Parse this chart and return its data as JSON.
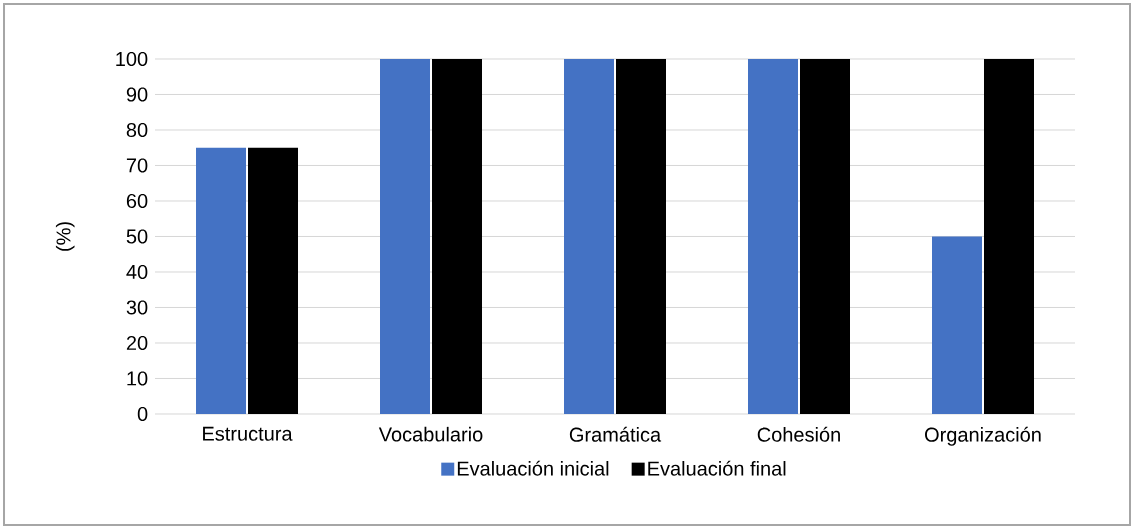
{
  "chart_data": {
    "type": "bar",
    "ylabel": "(%)",
    "categories": [
      "Estructura",
      "Vocabulario",
      "Gramática",
      "Cohesión",
      "Organización"
    ],
    "series": [
      {
        "name": "Evaluación inicial",
        "color": "#4472c4",
        "values": [
          75,
          100,
          100,
          100,
          50
        ]
      },
      {
        "name": "Evaluación final",
        "color": "#000000",
        "values": [
          75,
          100,
          100,
          100,
          100
        ]
      }
    ],
    "ylim": [
      0,
      100
    ],
    "yticks": [
      0,
      10,
      20,
      30,
      40,
      50,
      60,
      70,
      80,
      90,
      100
    ],
    "grid": "y",
    "legend": "bottom"
  }
}
